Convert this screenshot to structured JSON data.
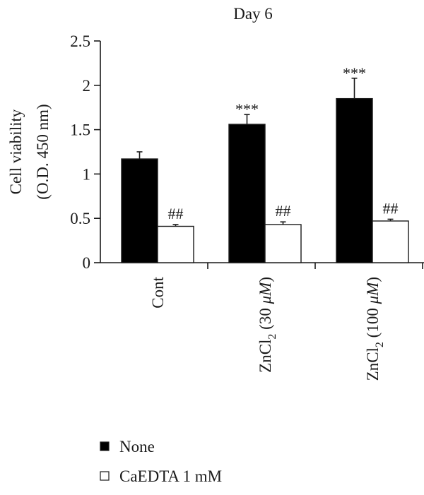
{
  "chart_data": {
    "type": "bar",
    "title": "Day 6",
    "ylabel_lines": [
      "Cell viability",
      "(O.D. 450 nm)"
    ],
    "xlabel": "",
    "ylim": [
      0,
      2.5
    ],
    "yticks": [
      0,
      0.5,
      1,
      1.5,
      2,
      2.5
    ],
    "ytick_labels": [
      "0",
      "0.5",
      "1",
      "1.5",
      "2",
      "2.5"
    ],
    "categories": [
      {
        "prefix": "Cont",
        "sub": "",
        "suffix": "",
        "unit": ""
      },
      {
        "prefix": "ZnCl",
        "sub": "2",
        "suffix": " (30 ",
        "unit": "μM",
        "close": ")"
      },
      {
        "prefix": "ZnCl",
        "sub": "2",
        "suffix": " (100 ",
        "unit": "μM",
        "close": ")"
      }
    ],
    "series": [
      {
        "name": "None",
        "color": "#000000",
        "values": [
          1.17,
          1.56,
          1.85
        ],
        "errors": [
          0.08,
          0.11,
          0.23
        ],
        "annotations": [
          "",
          "***",
          "***"
        ]
      },
      {
        "name": "CaEDTA 1 mM",
        "color": "#ffffff",
        "values": [
          0.41,
          0.43,
          0.47
        ],
        "errors": [
          0.02,
          0.03,
          0.02
        ],
        "annotations": [
          "##",
          "##",
          "##"
        ]
      }
    ],
    "legend_position": "bottom-left",
    "grid": false
  }
}
